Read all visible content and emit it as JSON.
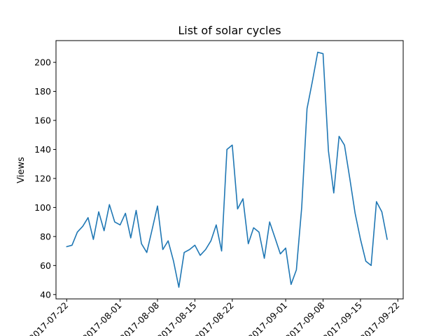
{
  "chart_data": {
    "type": "line",
    "title": "List of solar cycles",
    "xlabel": "",
    "ylabel": "Views",
    "x_tick_labels": [
      "2017-07-22",
      "2017-08-01",
      "2017-08-08",
      "2017-08-15",
      "2017-08-22",
      "2017-09-01",
      "2017-09-08",
      "2017-09-15",
      "2017-09-22"
    ],
    "y_tick_labels": [
      "40",
      "60",
      "80",
      "100",
      "120",
      "140",
      "160",
      "180",
      "200"
    ],
    "y_ticks": [
      40,
      60,
      80,
      100,
      120,
      140,
      160,
      180,
      200
    ],
    "xlim": [
      "2017-07-20",
      "2017-09-23"
    ],
    "ylim": [
      37,
      215
    ],
    "grid": false,
    "line_color": "#1f77b4",
    "series": [
      {
        "x": [
          "2017-07-22",
          "2017-07-23",
          "2017-07-24",
          "2017-07-25",
          "2017-07-26",
          "2017-07-27",
          "2017-07-28",
          "2017-07-29",
          "2017-07-30",
          "2017-07-31",
          "2017-08-01",
          "2017-08-02",
          "2017-08-03",
          "2017-08-04",
          "2017-08-05",
          "2017-08-06",
          "2017-08-07",
          "2017-08-08",
          "2017-08-09",
          "2017-08-10",
          "2017-08-11",
          "2017-08-12",
          "2017-08-13",
          "2017-08-14",
          "2017-08-15",
          "2017-08-16",
          "2017-08-17",
          "2017-08-18",
          "2017-08-19",
          "2017-08-20",
          "2017-08-21",
          "2017-08-22",
          "2017-08-23",
          "2017-08-24",
          "2017-08-25",
          "2017-08-26",
          "2017-08-27",
          "2017-08-28",
          "2017-08-29",
          "2017-08-30",
          "2017-08-31",
          "2017-09-01",
          "2017-09-02",
          "2017-09-03",
          "2017-09-04",
          "2017-09-05",
          "2017-09-06",
          "2017-09-07",
          "2017-09-08",
          "2017-09-09",
          "2017-09-10",
          "2017-09-11",
          "2017-09-12",
          "2017-09-13",
          "2017-09-14",
          "2017-09-15",
          "2017-09-16",
          "2017-09-17",
          "2017-09-18",
          "2017-09-19",
          "2017-09-20"
        ],
        "values": [
          73,
          74,
          83,
          87,
          93,
          78,
          97,
          84,
          102,
          90,
          88,
          96,
          79,
          98,
          75,
          69,
          85,
          101,
          71,
          77,
          63,
          45,
          69,
          71,
          74,
          67,
          71,
          77,
          88,
          70,
          140,
          143,
          99,
          106,
          75,
          86,
          83,
          65,
          90,
          79,
          68,
          72,
          47,
          57,
          100,
          168,
          187,
          207,
          206,
          139,
          110,
          149,
          143,
          120,
          96,
          78,
          63,
          60,
          104,
          97,
          78
        ]
      }
    ]
  }
}
